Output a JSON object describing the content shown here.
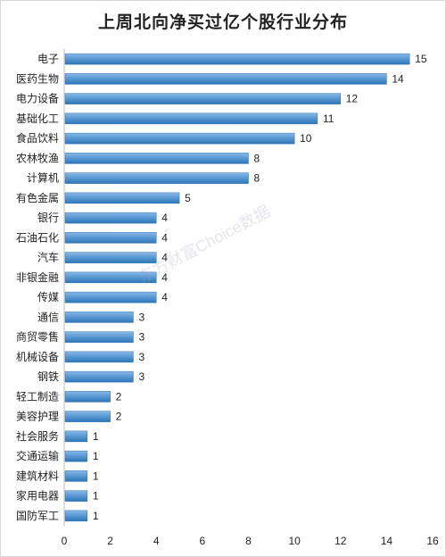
{
  "chart_data": {
    "type": "bar",
    "orientation": "horizontal",
    "title": "上周北向净买过亿个股行业分布",
    "categories": [
      "电子",
      "医药生物",
      "电力设备",
      "基础化工",
      "食品饮料",
      "农林牧渔",
      "计算机",
      "有色金属",
      "银行",
      "石油石化",
      "汽车",
      "非银金融",
      "传媒",
      "通信",
      "商贸零售",
      "机械设备",
      "钢铁",
      "轻工制造",
      "美容护理",
      "社会服务",
      "交通运输",
      "建筑材料",
      "家用电器",
      "国防军工"
    ],
    "values": [
      15,
      14,
      12,
      11,
      10,
      8,
      8,
      5,
      4,
      4,
      4,
      4,
      4,
      3,
      3,
      3,
      3,
      2,
      2,
      1,
      1,
      1,
      1,
      1
    ],
    "xlim": [
      0,
      16
    ],
    "xticks": [
      0,
      2,
      4,
      6,
      8,
      10,
      12,
      14,
      16
    ],
    "xlabel": "",
    "ylabel": "",
    "grid": false,
    "bar_color": "#5b9bd5",
    "bar_color_dark": "#2e75b6"
  },
  "watermark": "东方财富Choice数据"
}
